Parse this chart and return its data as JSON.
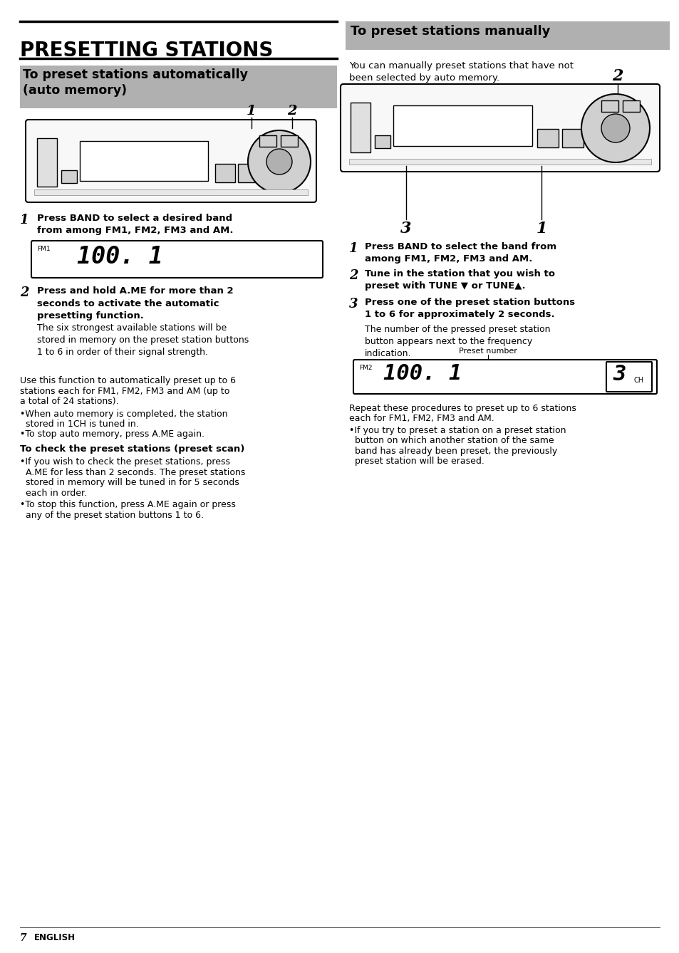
{
  "bg_color": "#ffffff",
  "title": "PRESETTING STATIONS",
  "sec1_header_line1": "To preset stations automatically",
  "sec1_header_line2": "(auto memory)",
  "sec2_header": "To preset stations manually",
  "sec2_intro_line1": "You can manually preset stations that have not",
  "sec2_intro_line2": "been selected by auto memory.",
  "step1L_b1": "Press BAND to select a desired band",
  "step1L_b2": "from among FM1, FM2, FM3 and AM.",
  "step2L_b1": "Press and hold A.ME for more than 2",
  "step2L_b2": "seconds to activate the automatic",
  "step2L_b3": "presetting function.",
  "step2L_n1": "The six strongest available stations will be",
  "step2L_n2": "stored in memory on the preset station buttons",
  "step2L_n3": "1 to 6 in order of their signal strength.",
  "paraL1": "Use this function to automatically preset up to 6",
  "paraL2": "stations each for FM1, FM2, FM3 and AM (up to",
  "paraL3": "a total of 24 stations).",
  "paraL4": "•When auto memory is completed, the station",
  "paraL5": "  stored in 1CH is tuned in.",
  "paraL6": "•To stop auto memory, press A.ME again.",
  "scan_hdr": "To check the preset stations (preset scan)",
  "scan1": "•If you wish to check the preset stations, press",
  "scan2": "  A.ME for less than 2 seconds. The preset stations",
  "scan3": "  stored in memory will be tuned in for 5 seconds",
  "scan4": "  each in order.",
  "scan5": "•To stop this function, press A.ME again or press",
  "scan6": "  any of the preset station buttons 1 to 6.",
  "step1R_b1": "Press BAND to select the band from",
  "step1R_b2": "among FM1, FM2, FM3 and AM.",
  "step2R_b1": "Tune in the station that you wish to",
  "step2R_b2": "preset with TUNE ▼ or TUNE▲.",
  "step3R_b1": "Press one of the preset station buttons",
  "step3R_b2": "1 to 6 for approximately 2 seconds.",
  "step3R_n1": "The number of the pressed preset station",
  "step3R_n2": "button appears next to the frequency",
  "step3R_n3": "indication.",
  "preset_num_label": "Preset number",
  "paraR1": "Repeat these procedures to preset up to 6 stations",
  "paraR2": "each for FM1, FM2, FM3 and AM.",
  "paraR3": "•If you try to preset a station on a preset station",
  "paraR4": "  button on which another station of the same",
  "paraR5": "  band has already been preset, the previously",
  "paraR6": "  preset station will be erased.",
  "footer_num": "7",
  "footer_eng": "ENGLISH",
  "header_gray": "#9e9e9e",
  "header_gray2": "#9e9e9e"
}
